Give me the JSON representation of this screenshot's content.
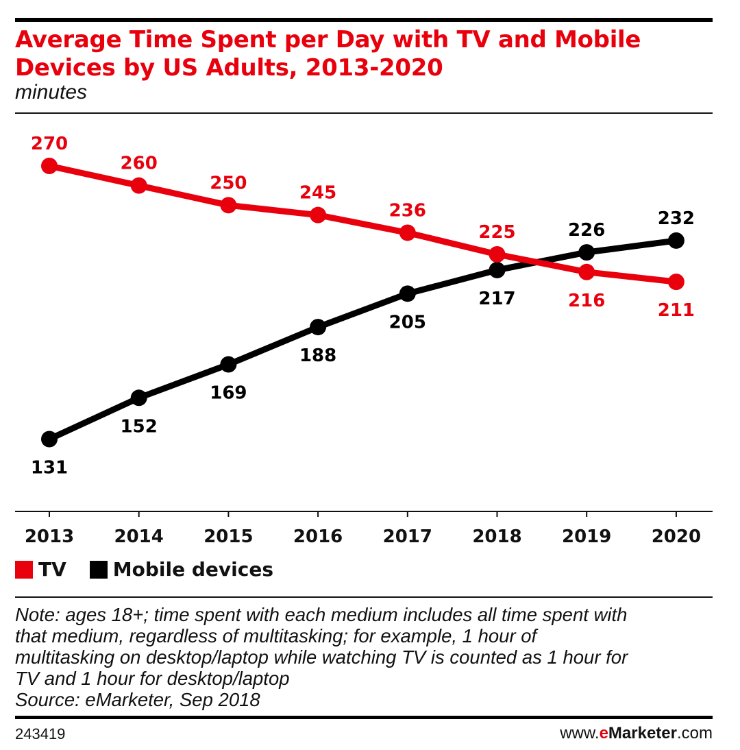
{
  "header": {
    "title": "Average Time Spent per Day with TV and Mobile Devices by US Adults, 2013-2020",
    "subtitle": "minutes"
  },
  "chart_data": {
    "type": "line",
    "title": "Average Time Spent per Day with TV and Mobile Devices by US Adults, 2013-2020",
    "subtitle": "minutes",
    "x": [
      "2013",
      "2014",
      "2015",
      "2016",
      "2017",
      "2018",
      "2019",
      "2020"
    ],
    "series": [
      {
        "name": "TV",
        "color": "#e8000c",
        "values": [
          270,
          260,
          250,
          245,
          236,
          225,
          216,
          211
        ]
      },
      {
        "name": "Mobile devices",
        "color": "#000000",
        "values": [
          131,
          152,
          169,
          188,
          205,
          217,
          226,
          232
        ]
      }
    ],
    "legend_position": "bottom-left",
    "grid": false
  },
  "legend": {
    "items": [
      {
        "label": "TV",
        "color": "#e8000c"
      },
      {
        "label": "Mobile devices",
        "color": "#000000"
      }
    ]
  },
  "footer": {
    "note_lines": [
      "Note: ages 18+; time spent with each medium includes all time spent with",
      "that medium, regardless of multitasking; for example, 1 hour of",
      "multitasking on desktop/laptop while watching TV is counted as 1 hour for",
      "TV and 1 hour for desktop/laptop",
      "Source: eMarketer, Sep 2018"
    ],
    "chart_id": "243419",
    "brand_prefix": "www.",
    "brand_e": "e",
    "brand_name": "Marketer",
    "brand_suffix": ".com"
  }
}
